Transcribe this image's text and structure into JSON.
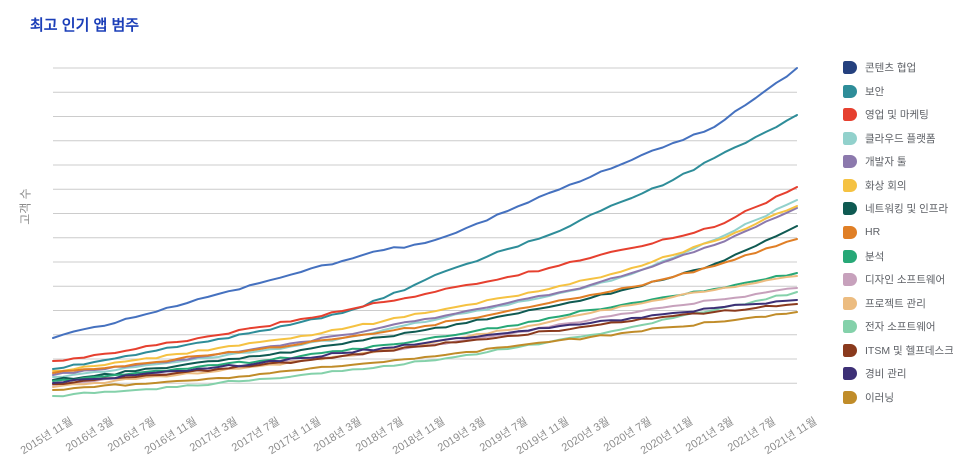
{
  "page": {
    "title": "최고 인기 앱 범주"
  },
  "colors": {
    "title": "#1b3eb8",
    "axis_text": "#8c8c8c",
    "legend_text": "#5d6066",
    "gridline": "#cccccc"
  },
  "chart_data": {
    "type": "line",
    "title": "최고 인기 앱 범주",
    "xlabel": "",
    "ylabel": "고객 수",
    "legend_position": "right",
    "grid": "horizontal",
    "gridlines": {
      "count": 14,
      "orientation": "horizontal"
    },
    "y_tick_labels": [],
    "ylim": [
      0,
      345
    ],
    "x_tick_labels": [
      "2015년 11월",
      "2016년 3월",
      "2016년 7월",
      "2016년 11월",
      "2017년 3월",
      "2017년 7월",
      "2017년 11월",
      "2018년 3월",
      "2018년 7월",
      "2018년 11월",
      "2019년 3월",
      "2019년 7월",
      "2019년 11월",
      "2020년 3월",
      "2020년 7월",
      "2020년 11월",
      "2021년 3월",
      "2021년 7월",
      "2021년 11월"
    ],
    "series": [
      {
        "name": "콘텐츠 협업",
        "color": "#4571bf",
        "legend_color": "#24407e",
        "values": [
          67,
          78,
          88,
          99,
          111,
          122,
          133,
          144,
          155,
          162,
          177,
          194,
          212,
          228,
          245,
          262,
          278,
          307,
          337
        ]
      },
      {
        "name": "보안",
        "color": "#2e8d99",
        "values": [
          36,
          43,
          50,
          58,
          66,
          74,
          83,
          92,
          107,
          125,
          141,
          156,
          170,
          190,
          207,
          225,
          247,
          268,
          290
        ]
      },
      {
        "name": "영업 및 마케팅",
        "color": "#e6402f",
        "values": [
          44,
          50,
          56,
          63,
          70,
          78,
          86,
          94,
          103,
          111,
          120,
          128,
          137,
          147,
          157,
          167,
          178,
          198,
          218
        ]
      },
      {
        "name": "클라우드 플랫폼",
        "color": "#92d1cc",
        "values": [
          28,
          33,
          38,
          43,
          48,
          54,
          60,
          67,
          75,
          83,
          92,
          100,
          109,
          119,
          131,
          147,
          165,
          185,
          205
        ]
      },
      {
        "name": "개발자 툴",
        "color": "#8c79ad",
        "values": [
          30,
          35,
          40,
          45,
          51,
          57,
          63,
          70,
          78,
          86,
          94,
          102,
          110,
          120,
          132,
          146,
          160,
          178,
          197
        ]
      },
      {
        "name": "화상 회의",
        "color": "#f5c242",
        "values": [
          34,
          39,
          45,
          51,
          57,
          63,
          69,
          76,
          84,
          92,
          100,
          108,
          116,
          126,
          137,
          150,
          164,
          181,
          199
        ]
      },
      {
        "name": "네트워킹 및 인프라",
        "color": "#0f5a52",
        "values": [
          25,
          29,
          34,
          39,
          44,
          49,
          55,
          61,
          68,
          75,
          82,
          90,
          98,
          107,
          117,
          128,
          141,
          159,
          179
        ]
      },
      {
        "name": "HR",
        "color": "#e07f26",
        "values": [
          32,
          36,
          41,
          46,
          51,
          56,
          61,
          67,
          73,
          79,
          86,
          94,
          102,
          110,
          118,
          128,
          139,
          152,
          166
        ]
      },
      {
        "name": "분석",
        "color": "#27a877",
        "values": [
          24,
          28,
          32,
          36,
          40,
          44,
          49,
          54,
          60,
          66,
          72,
          79,
          87,
          95,
          102,
          109,
          116,
          124,
          132
        ]
      },
      {
        "name": "디자인 소프트웨어",
        "color": "#c7a1bc",
        "values": [
          20,
          24,
          28,
          32,
          36,
          40,
          44,
          49,
          54,
          59,
          65,
          71,
          78,
          85,
          92,
          99,
          105,
          111,
          117
        ]
      },
      {
        "name": "프로젝트 관리",
        "color": "#ecbc80",
        "values": [
          18,
          22,
          26,
          30,
          34,
          39,
          44,
          49,
          55,
          61,
          68,
          75,
          83,
          92,
          100,
          108,
          115,
          122,
          129
        ]
      },
      {
        "name": "전자 소프트웨어",
        "color": "#84d1aa",
        "values": [
          9,
          12,
          15,
          18,
          22,
          26,
          30,
          34,
          39,
          44,
          50,
          56,
          63,
          70,
          78,
          87,
          95,
          104,
          113
        ]
      },
      {
        "name": "ITSM 및 헬프데스크",
        "color": "#8a3a1d",
        "values": [
          21,
          25,
          28,
          32,
          36,
          40,
          44,
          49,
          54,
          59,
          64,
          69,
          74,
          79,
          84,
          89,
          93,
          97,
          101
        ]
      },
      {
        "name": "경비 관리",
        "color": "#3d3076",
        "values": [
          22,
          26,
          30,
          34,
          38,
          42,
          47,
          52,
          57,
          62,
          67,
          72,
          77,
          82,
          87,
          92,
          97,
          101,
          105
        ]
      },
      {
        "name": "이러닝",
        "color": "#c08c29",
        "values": [
          15,
          18,
          21,
          24,
          27,
          31,
          35,
          39,
          43,
          48,
          53,
          58,
          63,
          68,
          73,
          78,
          83,
          88,
          93
        ]
      }
    ]
  }
}
